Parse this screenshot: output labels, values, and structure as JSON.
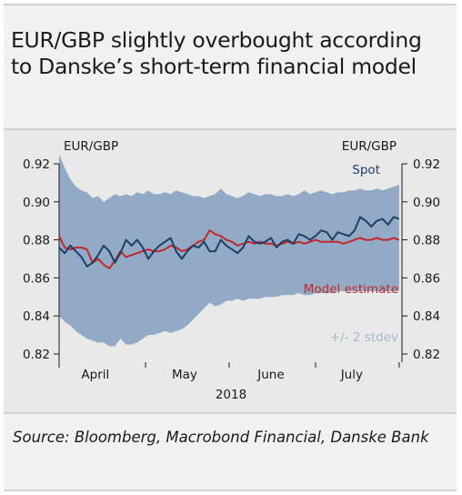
{
  "title": "EUR/GBP slightly overbought according to Danske’s short-term financial model",
  "source": "Source: Bloomberg, Macrobond Financial, Danske Bank",
  "colors": {
    "spot": "#1c3f66",
    "model": "#c0282c",
    "band": "#93aac6",
    "background": "#f1f1f1"
  },
  "chart_data": {
    "type": "line",
    "left_axis_label": "EUR/GBP",
    "right_axis_label": "EUR/GBP",
    "ylim": [
      0.82,
      0.92
    ],
    "yticks": [
      "0.92",
      "0.90",
      "0.88",
      "0.86",
      "0.84",
      "0.82"
    ],
    "xlabel": "2018",
    "x_ticks": [
      "April",
      "May",
      "June",
      "July"
    ],
    "x_range_days": [
      0,
      123
    ],
    "labels": {
      "spot": "Spot",
      "model": "Model estimate",
      "band": "+/- 2 stdev"
    },
    "x": [
      0,
      2,
      4,
      6,
      8,
      10,
      12,
      14,
      16,
      18,
      20,
      22,
      24,
      26,
      28,
      30,
      32,
      34,
      36,
      38,
      40,
      42,
      44,
      46,
      48,
      50,
      52,
      54,
      56,
      58,
      60,
      62,
      64,
      66,
      68,
      70,
      72,
      74,
      76,
      78,
      80,
      82,
      84,
      86,
      88,
      90,
      92,
      94,
      96,
      98,
      100,
      102,
      104,
      106,
      108,
      110,
      112,
      114,
      116,
      118,
      120,
      122
    ],
    "series": [
      {
        "name": "Spot",
        "values": [
          0.876,
          0.873,
          0.877,
          0.874,
          0.871,
          0.866,
          0.868,
          0.872,
          0.877,
          0.874,
          0.868,
          0.873,
          0.88,
          0.877,
          0.88,
          0.876,
          0.87,
          0.874,
          0.877,
          0.879,
          0.881,
          0.874,
          0.87,
          0.874,
          0.877,
          0.876,
          0.879,
          0.874,
          0.874,
          0.88,
          0.877,
          0.875,
          0.873,
          0.876,
          0.882,
          0.879,
          0.878,
          0.879,
          0.881,
          0.876,
          0.879,
          0.88,
          0.878,
          0.883,
          0.882,
          0.88,
          0.882,
          0.885,
          0.884,
          0.88,
          0.884,
          0.883,
          0.882,
          0.885,
          0.892,
          0.89,
          0.887,
          0.89,
          0.891,
          0.888,
          0.892,
          0.891
        ]
      },
      {
        "name": "Model estimate",
        "values": [
          0.882,
          0.876,
          0.875,
          0.876,
          0.876,
          0.875,
          0.868,
          0.87,
          0.867,
          0.865,
          0.869,
          0.874,
          0.871,
          0.872,
          0.873,
          0.874,
          0.875,
          0.874,
          0.874,
          0.875,
          0.877,
          0.876,
          0.874,
          0.875,
          0.877,
          0.879,
          0.88,
          0.885,
          0.883,
          0.882,
          0.88,
          0.879,
          0.877,
          0.878,
          0.879,
          0.878,
          0.879,
          0.878,
          0.878,
          0.877,
          0.878,
          0.879,
          0.878,
          0.879,
          0.878,
          0.879,
          0.88,
          0.879,
          0.879,
          0.879,
          0.879,
          0.878,
          0.879,
          0.88,
          0.881,
          0.88,
          0.88,
          0.881,
          0.88,
          0.88,
          0.881,
          0.88
        ]
      }
    ],
    "band": {
      "name": "+/- 2 stdev",
      "upper": [
        0.925,
        0.918,
        0.912,
        0.908,
        0.906,
        0.905,
        0.902,
        0.903,
        0.9,
        0.902,
        0.904,
        0.903,
        0.904,
        0.903,
        0.905,
        0.904,
        0.906,
        0.904,
        0.904,
        0.905,
        0.904,
        0.906,
        0.905,
        0.904,
        0.903,
        0.903,
        0.902,
        0.903,
        0.904,
        0.907,
        0.904,
        0.903,
        0.902,
        0.903,
        0.905,
        0.904,
        0.903,
        0.904,
        0.904,
        0.903,
        0.903,
        0.904,
        0.903,
        0.904,
        0.906,
        0.904,
        0.905,
        0.906,
        0.905,
        0.904,
        0.905,
        0.905,
        0.906,
        0.906,
        0.907,
        0.906,
        0.906,
        0.907,
        0.906,
        0.907,
        0.908,
        0.909
      ],
      "lower": [
        0.84,
        0.837,
        0.835,
        0.832,
        0.83,
        0.828,
        0.827,
        0.826,
        0.826,
        0.824,
        0.824,
        0.828,
        0.825,
        0.825,
        0.826,
        0.828,
        0.83,
        0.83,
        0.831,
        0.832,
        0.831,
        0.832,
        0.833,
        0.835,
        0.838,
        0.841,
        0.844,
        0.847,
        0.845,
        0.846,
        0.848,
        0.848,
        0.849,
        0.848,
        0.849,
        0.849,
        0.849,
        0.85,
        0.85,
        0.85,
        0.851,
        0.851,
        0.851,
        0.852,
        0.851,
        0.851,
        0.852,
        0.852,
        0.852,
        0.852,
        0.853,
        0.853,
        0.853,
        0.853,
        0.853,
        0.853,
        0.853,
        0.853,
        0.853,
        0.853,
        0.853,
        0.853
      ]
    },
    "grid": false
  }
}
